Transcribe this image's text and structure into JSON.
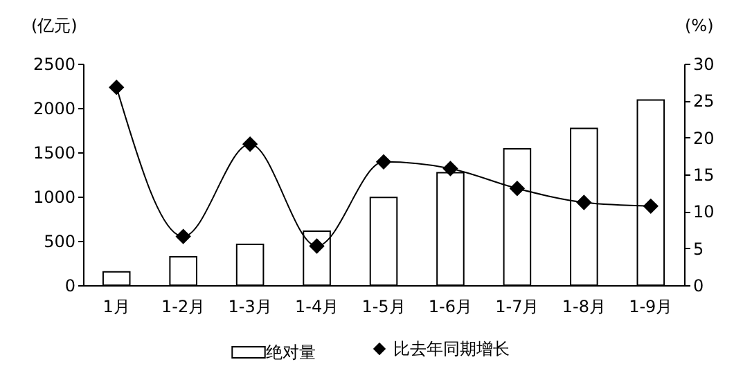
{
  "chart_data": {
    "type": "bar",
    "ylabel": "(亿元)",
    "y2label": "(%)",
    "categories": [
      "1月",
      "1-2月",
      "1-3月",
      "1-4月",
      "1-5月",
      "1-6月",
      "1-7月",
      "1-8月",
      "1-9月"
    ],
    "series": [
      {
        "name": "绝对量",
        "color": "#ffffff",
        "values": [
          150,
          320,
          460,
          610,
          990,
          1270,
          1540,
          1770,
          2090
        ]
      },
      {
        "name": "比去年同期增长",
        "type": "line",
        "axis": "y2",
        "color": "#000000",
        "values": [
          26.8,
          6.6,
          19.1,
          5.3,
          16.7,
          15.8,
          13.1,
          11.2,
          10.7
        ]
      }
    ],
    "ylim": [
      0,
      2500
    ],
    "yticks": [
      0,
      500,
      1000,
      1500,
      2000,
      2500
    ],
    "y2lim": [
      0,
      30
    ],
    "y2ticks": [
      0,
      5,
      10,
      15,
      20,
      25,
      30
    ],
    "legend": "bottom",
    "marker": "diamond"
  }
}
